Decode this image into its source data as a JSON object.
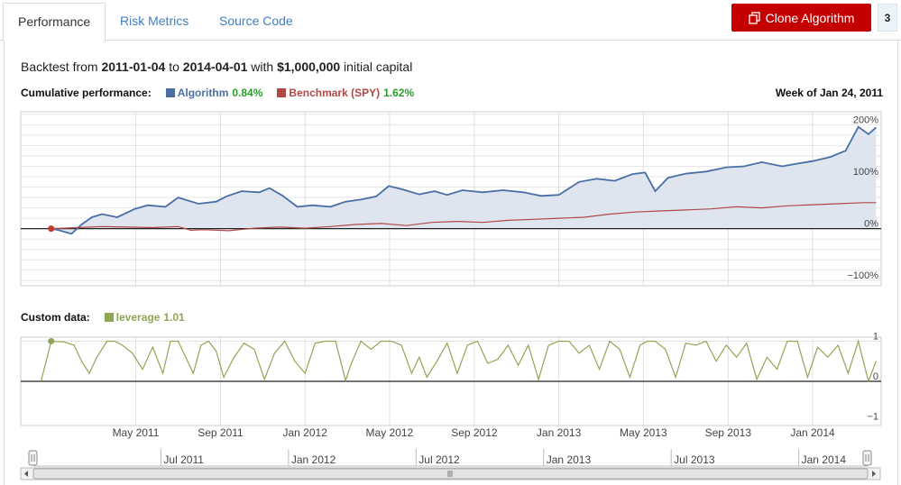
{
  "tabs": [
    {
      "label": "Performance",
      "active": true
    },
    {
      "label": "Risk Metrics",
      "active": false
    },
    {
      "label": "Source Code",
      "active": false
    }
  ],
  "actions": {
    "clone_label": "Clone Algorithm",
    "count": "3",
    "clone_color": "#c40000"
  },
  "summary": {
    "prefix": "Backtest from ",
    "start": "2011-01-04",
    "mid": " to ",
    "end": "2014-04-01",
    "mid2": " with ",
    "capital": "$1,000,000",
    "suffix": " initial capital"
  },
  "performance_legend": {
    "title": "Cumulative performance:",
    "algorithm_name": "Algorithm",
    "algorithm_value": "0.84%",
    "algorithm_color": "#4a6fa5",
    "benchmark_name": "Benchmark (SPY)",
    "benchmark_value": "1.62%",
    "benchmark_color": "#b04848",
    "week_label": "Week of Jan 24, 2011"
  },
  "custom_legend": {
    "title": "Custom data:",
    "series_name": "leverage",
    "series_value": "1.01",
    "series_color": "#8fa655"
  },
  "chart_data": [
    {
      "type": "area",
      "ylim": [
        -110,
        225
      ],
      "y_ticks": [
        "200%",
        "100%",
        "0%",
        "−100%"
      ],
      "y_tick_values": [
        200,
        100,
        0,
        -100
      ],
      "grid": true,
      "series": [
        {
          "name": "Algorithm",
          "color": "#4a6fa5",
          "x": [
            2011.0,
            2011.03,
            2011.08,
            2011.12,
            2011.16,
            2011.2,
            2011.26,
            2011.33,
            2011.38,
            2011.45,
            2011.5,
            2011.58,
            2011.65,
            2011.69,
            2011.75,
            2011.82,
            2011.86,
            2011.91,
            2011.97,
            2012.03,
            2012.1,
            2012.16,
            2012.22,
            2012.28,
            2012.33,
            2012.38,
            2012.45,
            2012.51,
            2012.56,
            2012.62,
            2012.7,
            2012.78,
            2012.86,
            2012.93,
            2013.0,
            2013.08,
            2013.15,
            2013.22,
            2013.29,
            2013.34,
            2013.38,
            2013.43,
            2013.5,
            2013.58,
            2013.66,
            2013.73,
            2013.8,
            2013.88,
            2013.95,
            2014.0,
            2014.07,
            2014.13,
            2014.18,
            2014.22,
            2014.25
          ],
          "y": [
            0,
            -3,
            -10,
            8,
            22,
            28,
            22,
            38,
            45,
            42,
            60,
            48,
            52,
            62,
            72,
            70,
            78,
            64,
            42,
            45,
            42,
            52,
            56,
            62,
            82,
            76,
            66,
            72,
            65,
            74,
            70,
            74,
            70,
            63,
            65,
            90,
            96,
            92,
            105,
            108,
            72,
            98,
            106,
            110,
            118,
            120,
            128,
            120,
            126,
            130,
            138,
            150,
            196,
            182,
            195
          ]
        },
        {
          "name": "Benchmark (SPY)",
          "color": "#b04848",
          "x": [
            2011.0,
            2011.1,
            2011.2,
            2011.3,
            2011.4,
            2011.5,
            2011.55,
            2011.6,
            2011.7,
            2011.8,
            2011.9,
            2012.0,
            2012.1,
            2012.2,
            2012.3,
            2012.4,
            2012.5,
            2012.6,
            2012.7,
            2012.8,
            2012.9,
            2013.0,
            2013.1,
            2013.2,
            2013.3,
            2013.4,
            2013.5,
            2013.6,
            2013.7,
            2013.8,
            2013.9,
            2014.0,
            2014.1,
            2014.2,
            2014.25
          ],
          "y": [
            0,
            2,
            4,
            3,
            2,
            4,
            -3,
            -2,
            -4,
            1,
            3,
            1,
            4,
            8,
            10,
            6,
            12,
            14,
            12,
            16,
            18,
            20,
            22,
            28,
            32,
            34,
            36,
            38,
            42,
            40,
            44,
            46,
            48,
            50,
            50
          ]
        }
      ]
    },
    {
      "type": "line",
      "ylim": [
        -1.1,
        1.1
      ],
      "y_ticks": [
        "1",
        "0",
        "−1"
      ],
      "y_tick_values": [
        1,
        0,
        -1
      ],
      "x_ticks": [
        "May 2011",
        "Sep 2011",
        "Jan 2012",
        "May 2012",
        "Sep 2012",
        "Jan 2013",
        "May 2013",
        "Sep 2013",
        "Jan 2014"
      ],
      "x_tick_values": [
        2011.333,
        2011.667,
        2012.0,
        2012.333,
        2012.667,
        2013.0,
        2013.333,
        2013.667,
        2014.0
      ],
      "series": [
        {
          "name": "leverage",
          "color": "#8fa655",
          "x": [
            2010.96,
            2011.0,
            2011.05,
            2011.09,
            2011.12,
            2011.15,
            2011.18,
            2011.22,
            2011.25,
            2011.28,
            2011.32,
            2011.36,
            2011.4,
            2011.44,
            2011.47,
            2011.5,
            2011.53,
            2011.56,
            2011.59,
            2011.62,
            2011.65,
            2011.68,
            2011.72,
            2011.76,
            2011.8,
            2011.84,
            2011.88,
            2011.92,
            2011.96,
            2012.0,
            2012.04,
            2012.08,
            2012.12,
            2012.16,
            2012.18,
            2012.22,
            2012.26,
            2012.3,
            2012.34,
            2012.38,
            2012.42,
            2012.45,
            2012.48,
            2012.52,
            2012.56,
            2012.6,
            2012.64,
            2012.68,
            2012.72,
            2012.76,
            2012.8,
            2012.84,
            2012.88,
            2012.92,
            2012.96,
            2013.0,
            2013.04,
            2013.08,
            2013.12,
            2013.16,
            2013.2,
            2013.24,
            2013.28,
            2013.32,
            2013.35,
            2013.38,
            2013.42,
            2013.46,
            2013.5,
            2013.54,
            2013.58,
            2013.62,
            2013.66,
            2013.7,
            2013.74,
            2013.78,
            2013.82,
            2013.86,
            2013.9,
            2013.94,
            2013.98,
            2014.02,
            2014.06,
            2014.1,
            2014.14,
            2014.18,
            2014.22,
            2014.25
          ],
          "y": [
            0,
            1,
            0.98,
            0.9,
            0.5,
            0.2,
            0.6,
            1,
            1,
            0.9,
            0.7,
            0.3,
            0.85,
            0.2,
            1,
            1,
            0.6,
            0.2,
            0.9,
            1,
            0.75,
            0.1,
            0.6,
            0.95,
            0.8,
            0.05,
            0.7,
            1,
            0.5,
            0.2,
            0.95,
            1,
            1,
            0.02,
            0.4,
            1,
            0.8,
            1,
            1,
            0.9,
            0.2,
            0.6,
            0.1,
            0.5,
            0.95,
            0.2,
            0.9,
            1,
            0.45,
            0.55,
            0.9,
            0.4,
            0.9,
            0.05,
            0.9,
            1,
            1,
            0.7,
            0.9,
            0.3,
            1,
            0.8,
            0.1,
            0.9,
            1,
            1,
            0.8,
            0.1,
            0.95,
            0.9,
            1,
            0.5,
            0.9,
            0.6,
            0.95,
            0.05,
            0.6,
            0.3,
            1,
            1,
            0.1,
            0.85,
            0.6,
            0.9,
            0.2,
            1,
            0.0,
            0.5
          ]
        }
      ]
    },
    {
      "type": "line",
      "x_ticks": [
        "Jul 2011",
        "Jan 2012",
        "Jul 2012",
        "Jan 2013",
        "Jul 2013",
        "Jan 2014"
      ],
      "x_tick_values": [
        2011.5,
        2012.0,
        2012.5,
        2013.0,
        2013.5,
        2014.0
      ]
    }
  ]
}
